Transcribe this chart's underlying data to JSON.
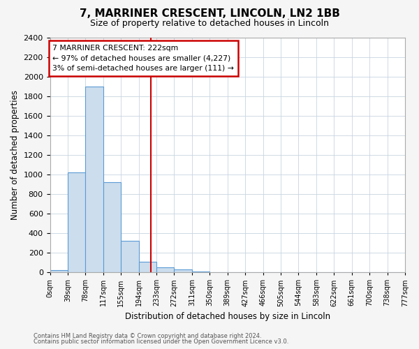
{
  "title": "7, MARRINER CRESCENT, LINCOLN, LN2 1BB",
  "subtitle": "Size of property relative to detached houses in Lincoln",
  "xlabel": "Distribution of detached houses by size in Lincoln",
  "ylabel": "Number of detached properties",
  "bin_labels": [
    "0sqm",
    "39sqm",
    "78sqm",
    "117sqm",
    "155sqm",
    "194sqm",
    "233sqm",
    "272sqm",
    "311sqm",
    "350sqm",
    "389sqm",
    "427sqm",
    "466sqm",
    "505sqm",
    "544sqm",
    "583sqm",
    "622sqm",
    "661sqm",
    "700sqm",
    "738sqm",
    "777sqm"
  ],
  "bar_values": [
    20,
    1020,
    1900,
    920,
    320,
    110,
    50,
    30,
    10,
    0,
    0,
    0,
    0,
    0,
    0,
    0,
    0,
    0,
    0,
    0
  ],
  "bar_color": "#ccdded",
  "bar_edge_color": "#5b9bd5",
  "vline_x": 5.7,
  "vline_color": "#cc0000",
  "annotation_title": "7 MARRINER CRESCENT: 222sqm",
  "annotation_line1": "← 97% of detached houses are smaller (4,227)",
  "annotation_line2": "3% of semi-detached houses are larger (111) →",
  "annotation_box_color": "#ffffff",
  "annotation_box_edge": "#cc0000",
  "ylim": [
    0,
    2400
  ],
  "yticks": [
    0,
    200,
    400,
    600,
    800,
    1000,
    1200,
    1400,
    1600,
    1800,
    2000,
    2200,
    2400
  ],
  "footer1": "Contains HM Land Registry data © Crown copyright and database right 2024.",
  "footer2": "Contains public sector information licensed under the Open Government Licence v3.0.",
  "bg_color": "#f5f5f5",
  "plot_bg_color": "#ffffff",
  "grid_color": "#c8d4e0"
}
